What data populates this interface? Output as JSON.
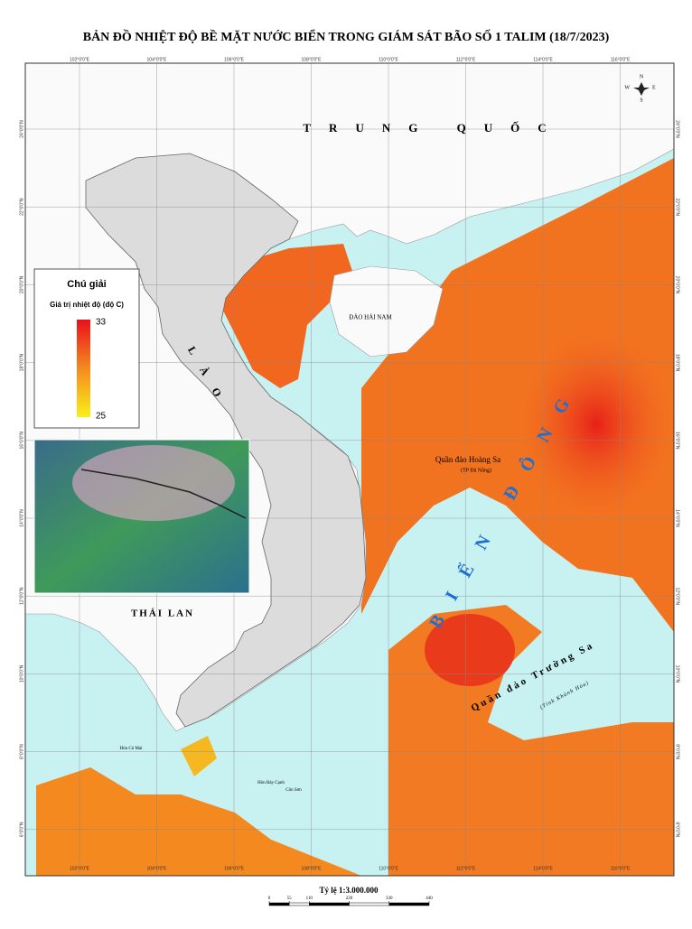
{
  "title": "BẢN ĐỒ NHIỆT ĐỘ BỀ MẶT NƯỚC BIỂN TRONG GIÁM SÁT BÃO SỐ 1 TALIM (18/7/2023)",
  "map": {
    "lon_ticks": [
      {
        "value": 102,
        "label": "102°0'0\"E"
      },
      {
        "value": 104,
        "label": "104°0'0\"E"
      },
      {
        "value": 106,
        "label": "106°0'0\"E"
      },
      {
        "value": 108,
        "label": "108°0'0\"E"
      },
      {
        "value": 110,
        "label": "110°0'0\"E"
      },
      {
        "value": 112,
        "label": "112°0'0\"E"
      },
      {
        "value": 114,
        "label": "114°0'0\"E"
      },
      {
        "value": 116,
        "label": "116°0'0\"E"
      }
    ],
    "lat_ticks": [
      {
        "value": 24,
        "label": "24°0'0\"N"
      },
      {
        "value": 22,
        "label": "22°0'0\"N"
      },
      {
        "value": 20,
        "label": "20°0'0\"N"
      },
      {
        "value": 18,
        "label": "18°0'0\"N"
      },
      {
        "value": 16,
        "label": "16°0'0\"N"
      },
      {
        "value": 14,
        "label": "14°0'0\"N"
      },
      {
        "value": 12,
        "label": "12°0'0\"N"
      },
      {
        "value": 10,
        "label": "10°0'0\"N"
      },
      {
        "value": 8,
        "label": "8°0'0\"N"
      },
      {
        "value": 6,
        "label": "6°0'0\"N"
      }
    ],
    "labels": {
      "china": "TRUNG QUỐC",
      "hainan": "ĐẢO HẢI NAM",
      "laos": "LÀO",
      "thailand": "THÁI LAN",
      "hoang_sa": "Quần đảo Hoàng Sa",
      "hoang_sa_sub": "(TP Đà Nẵng)",
      "bien_dong": "BIỂN ĐÔNG",
      "truong_sa": "Quần đảo Trường Sa",
      "truong_sa_sub": "(Tỉnh Khánh Hòa)",
      "island_1": "Hòn Cỏ Mai",
      "island_2": "Hòn Bảy Cạnh",
      "island_3": "Côn Sơn"
    }
  },
  "legend": {
    "title": "Chú giải",
    "subtitle": "Giá trị nhiệt độ (độ C)",
    "max": 33,
    "min": 25
  },
  "scale": {
    "label": "Tỷ lệ 1:3.000.000",
    "ticks": [
      0,
      55,
      110,
      220,
      330,
      440
    ]
  },
  "compass": {
    "n": "N",
    "s": "S",
    "e": "E",
    "w": "W"
  }
}
